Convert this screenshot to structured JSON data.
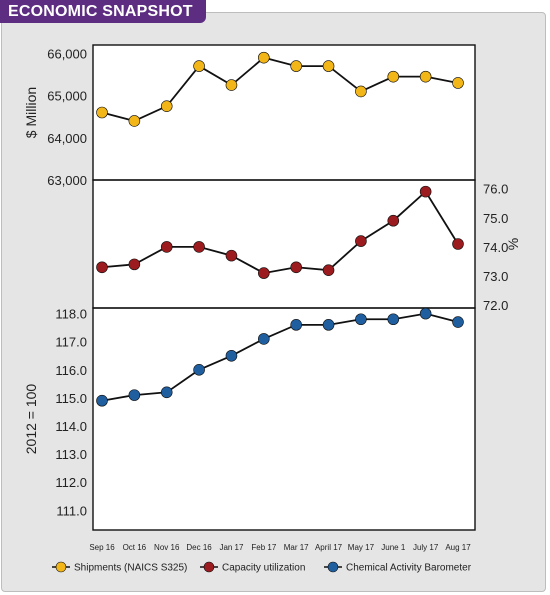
{
  "banner": {
    "title": "ECONOMIC SNAPSHOT",
    "color": "#5c2d81"
  },
  "chart_data": {
    "type": "line",
    "categories": [
      "Sep 16",
      "Oct 16",
      "Nov 16",
      "Dec 16",
      "Jan 17",
      "Feb 17",
      "Mar 17",
      "April 17",
      "May 17",
      "June 1",
      "July 17",
      "Aug 17"
    ],
    "panels": [
      {
        "ylabel": "$ Million",
        "ylim": [
          63000,
          66200
        ],
        "yticks": [
          "66,000",
          "65,000",
          "64,000",
          "63,000"
        ],
        "ytick_values": [
          66000,
          65000,
          64000,
          63000
        ],
        "axis_side": "left",
        "series": [
          {
            "name": "Shipments (NAICS S325)",
            "color": "#f2b619",
            "values": [
              64600,
              64400,
              64750,
              65700,
              65250,
              65900,
              65700,
              65700,
              65100,
              65450,
              65450,
              65300
            ]
          }
        ]
      },
      {
        "ylabel": "%",
        "ylim": [
          71.9,
          76.3
        ],
        "yticks": [
          "76.0",
          "75.0",
          "74.0",
          "73.0",
          "72.0"
        ],
        "ytick_values": [
          76.0,
          75.0,
          74.0,
          73.0,
          72.0
        ],
        "axis_side": "right",
        "series": [
          {
            "name": "Capacity utilization",
            "color": "#9b1b1e",
            "values": [
              73.3,
              73.4,
              74.0,
              74.0,
              73.7,
              73.1,
              73.3,
              73.2,
              74.2,
              74.9,
              75.9,
              74.1
            ]
          }
        ]
      },
      {
        "ylabel": "2012 = 100",
        "ylim": [
          110.3,
          118.2
        ],
        "yticks": [
          "118.0",
          "117.0",
          "116.0",
          "115.0",
          "114.0",
          "113.0",
          "112.0",
          "111.0"
        ],
        "ytick_values": [
          118.0,
          117.0,
          116.0,
          115.0,
          114.0,
          113.0,
          112.0,
          111.0
        ],
        "axis_side": "left",
        "series": [
          {
            "name": "Chemical Activity Barometer",
            "color": "#1f5fa0",
            "values": [
              114.9,
              115.1,
              115.2,
              116.0,
              116.5,
              117.1,
              117.6,
              117.6,
              117.8,
              117.8,
              118.0,
              117.7
            ]
          }
        ]
      }
    ],
    "legend": {
      "position": "bottom",
      "items": [
        "Shipments (NAICS S325)",
        "Capacity utilization",
        "Chemical Activity Barometer"
      ]
    },
    "grid": false
  }
}
